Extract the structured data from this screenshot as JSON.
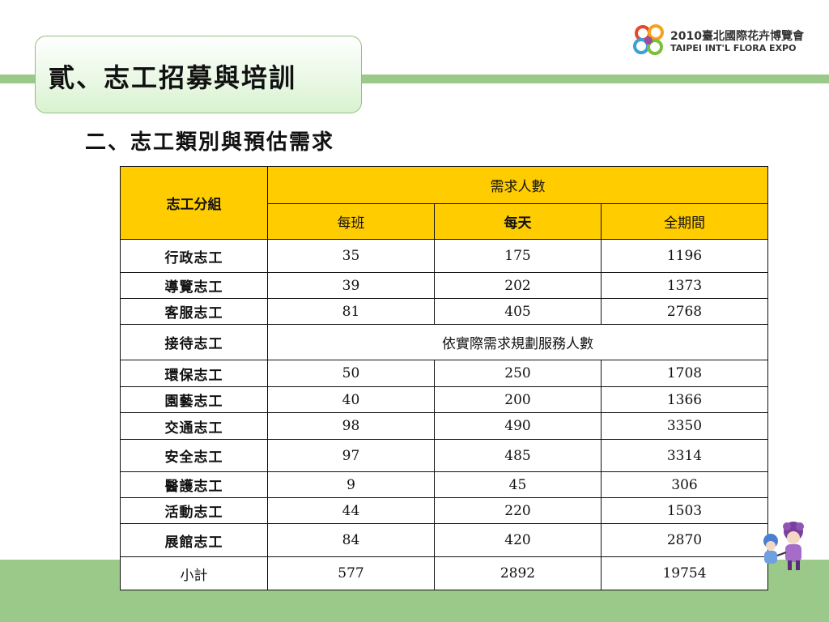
{
  "slide": {
    "title": "貳、志工招募與培訓",
    "subtitle": "二、志工類別與預估需求"
  },
  "logo": {
    "line1": "2010臺北國際花卉博覽會",
    "line2": "TAIPEI INT'L FLORA EXPO"
  },
  "table": {
    "group_header": "志工分組",
    "demand_header": "需求人數",
    "sub_headers": [
      "每班",
      "每天",
      "全期間"
    ],
    "rows": [
      {
        "name": "行政志工",
        "per_shift": "35",
        "per_day": "175",
        "total": "1196"
      },
      {
        "name": "導覽志工",
        "per_shift": "39",
        "per_day": "202",
        "total": "1373"
      },
      {
        "name": "客服志工",
        "per_shift": "81",
        "per_day": "405",
        "total": "2768"
      },
      {
        "name": "接待志工",
        "note": "依實際需求規劃服務人數"
      },
      {
        "name": "環保志工",
        "per_shift": "50",
        "per_day": "250",
        "total": "1708"
      },
      {
        "name": "園藝志工",
        "per_shift": "40",
        "per_day": "200",
        "total": "1366"
      },
      {
        "name": "交通志工",
        "per_shift": "98",
        "per_day": "490",
        "total": "3350"
      },
      {
        "name": "安全志工",
        "per_shift": "97",
        "per_day": "485",
        "total": "3314"
      },
      {
        "name": "醫護志工",
        "per_shift": "9",
        "per_day": "45",
        "total": "306"
      },
      {
        "name": "活動志工",
        "per_shift": "44",
        "per_day": "220",
        "total": "1503"
      },
      {
        "name": "展館志工",
        "per_shift": "84",
        "per_day": "420",
        "total": "2870"
      },
      {
        "name": "小計",
        "per_shift": "577",
        "per_day": "2892",
        "total": "19754"
      }
    ]
  }
}
